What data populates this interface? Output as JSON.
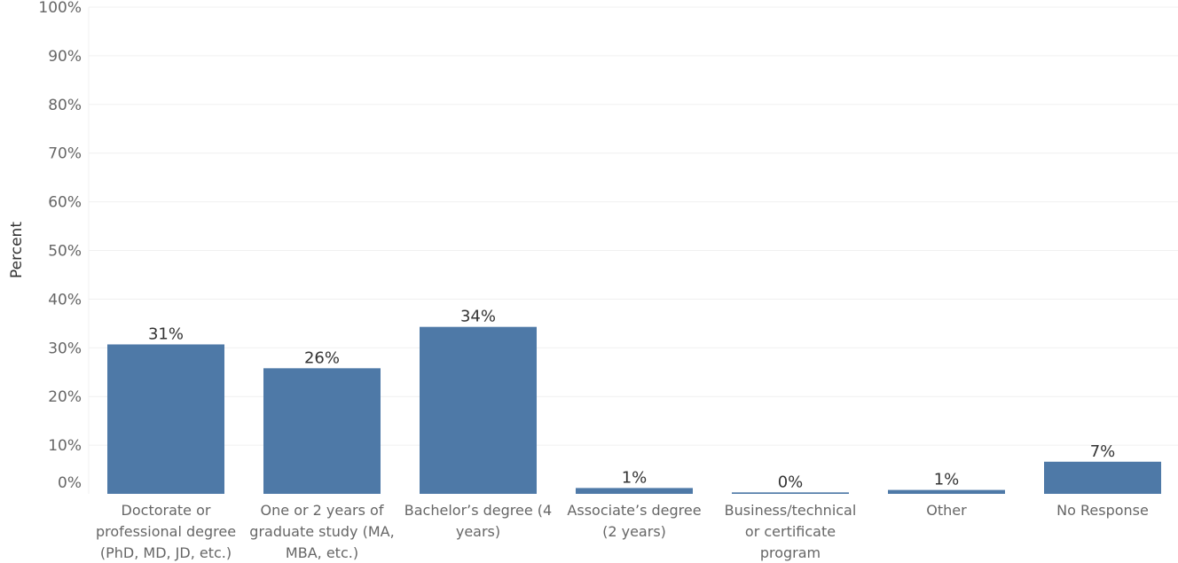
{
  "chart_data": {
    "type": "bar",
    "title": "",
    "xlabel": "",
    "ylabel": "Percent",
    "ylim": [
      0,
      100
    ],
    "yticks": [
      "0%",
      "10%",
      "20%",
      "30%",
      "40%",
      "50%",
      "60%",
      "70%",
      "80%",
      "90%",
      "100%"
    ],
    "grid": true,
    "bar_color": "#4e79a7",
    "categories": [
      [
        "Doctorate or",
        "professional degree",
        "(PhD, MD, JD, etc.)"
      ],
      [
        "One or 2 years of",
        "graduate study (MA,",
        "MBA, etc.)"
      ],
      [
        "Bachelor’s degree (4",
        "years)"
      ],
      [
        "Associate’s degree",
        "(2 years)"
      ],
      [
        "Business/technical",
        "or certificate",
        "program"
      ],
      [
        "Other"
      ],
      [
        "No Response"
      ]
    ],
    "values": [
      30.7,
      25.8,
      34.3,
      1.2,
      0.3,
      0.8,
      6.6
    ],
    "data_labels": [
      "31%",
      "26%",
      "34%",
      "1%",
      "0%",
      "1%",
      "7%"
    ]
  }
}
